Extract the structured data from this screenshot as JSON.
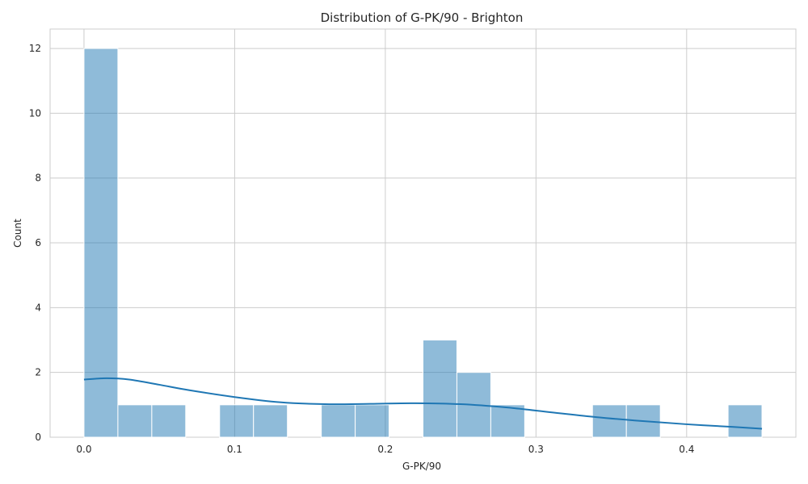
{
  "chart_data": {
    "type": "bar",
    "title": "Distribution of G-PK/90 - Brighton",
    "xlabel": "G-PK/90",
    "ylabel": "Count",
    "xlim": [
      -0.0225,
      0.4725
    ],
    "ylim": [
      0,
      12.6
    ],
    "grid": true,
    "colors": {
      "bar": "#1f77b4",
      "kde": "#1f77b4",
      "grid": "#cccccc"
    },
    "xticks": [
      0.0,
      0.1,
      0.2,
      0.3,
      0.4
    ],
    "xtick_labels": [
      "0.0",
      "0.1",
      "0.2",
      "0.3",
      "0.4"
    ],
    "yticks": [
      0,
      2,
      4,
      6,
      8,
      10,
      12
    ],
    "ytick_labels": [
      "0",
      "2",
      "4",
      "6",
      "8",
      "10",
      "12"
    ],
    "bin_edges": [
      0.0,
      0.0225,
      0.045,
      0.0675,
      0.09,
      0.1125,
      0.135,
      0.1575,
      0.18,
      0.2025,
      0.225,
      0.2475,
      0.27,
      0.2925,
      0.315,
      0.3375,
      0.36,
      0.3825,
      0.405,
      0.4275,
      0.45
    ],
    "counts": [
      12,
      1,
      1,
      0,
      1,
      1,
      0,
      1,
      1,
      0,
      3,
      2,
      1,
      0,
      0,
      1,
      1,
      0,
      0,
      1
    ],
    "kde": {
      "x": [
        0.0,
        0.015,
        0.03,
        0.05,
        0.07,
        0.1,
        0.13,
        0.16,
        0.19,
        0.22,
        0.25,
        0.28,
        0.31,
        0.34,
        0.37,
        0.4,
        0.43,
        0.45
      ],
      "y": [
        1.78,
        1.82,
        1.78,
        1.62,
        1.45,
        1.24,
        1.08,
        1.02,
        1.03,
        1.05,
        1.02,
        0.92,
        0.77,
        0.62,
        0.5,
        0.4,
        0.32,
        0.26
      ]
    }
  }
}
